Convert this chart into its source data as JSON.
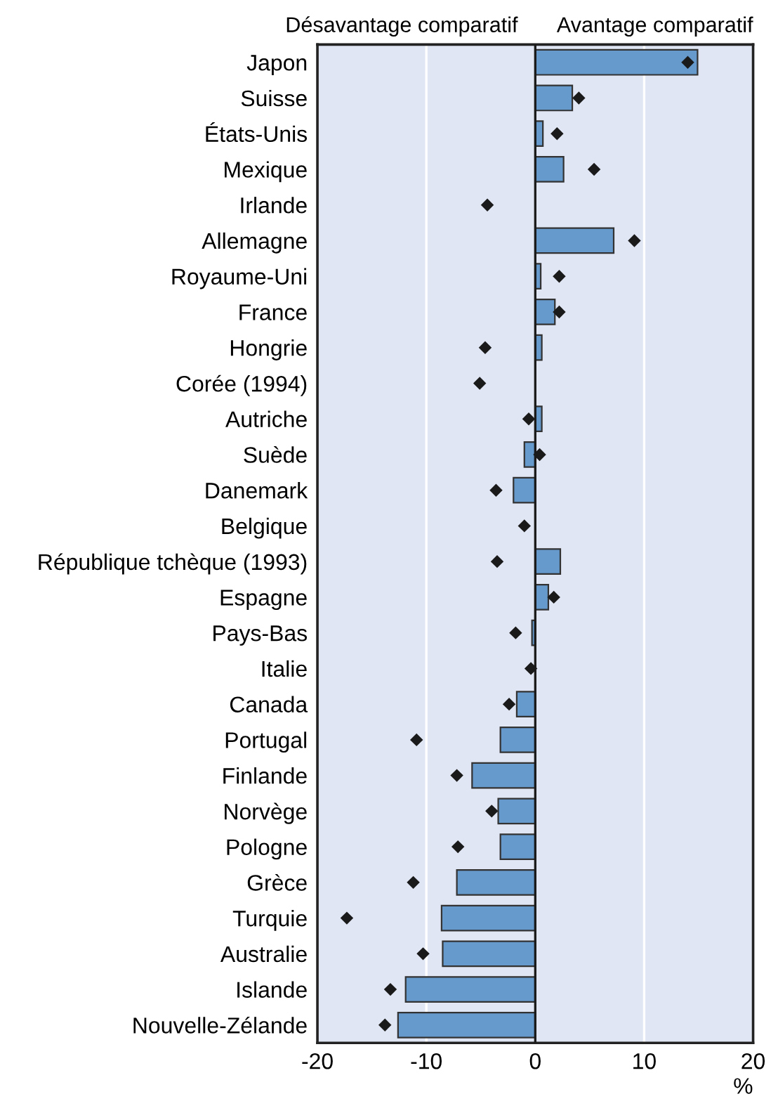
{
  "chart_data": {
    "type": "bar",
    "orientation": "horizontal",
    "xlabel": "%",
    "categories": [
      "Japon",
      "Suisse",
      "États-Unis",
      "Mexique",
      "Irlande",
      "Allemagne",
      "Royaume-Uni",
      "France",
      "Hongrie",
      "Corée (1994)",
      "Autriche",
      "Suède",
      "Danemark",
      "Belgique",
      "République tchèque (1993)",
      "Espagne",
      "Pays-Bas",
      "Italie",
      "Canada",
      "Portugal",
      "Finlande",
      "Norvège",
      "Pologne",
      "Grèce",
      "Turquie",
      "Australie",
      "Islande",
      "Nouvelle-Zélande"
    ],
    "series": [
      {
        "color": "#6699cc",
        "values": [
          14.9,
          3.4,
          0.7,
          2.6,
          null,
          7.2,
          0.5,
          1.8,
          0.6,
          null,
          0.6,
          -1.0,
          -2.0,
          null,
          2.3,
          1.2,
          -0.3,
          null,
          -1.7,
          -3.2,
          -5.8,
          -3.4,
          -3.2,
          -7.2,
          -8.6,
          -8.5,
          -11.9,
          -12.6
        ]
      },
      {
        "type": "scatter",
        "color": "#1a1a1a",
        "marker": "diamond",
        "values": [
          14.0,
          4.0,
          2.0,
          5.4,
          -4.4,
          9.1,
          2.2,
          2.2,
          -4.6,
          -5.1,
          -0.6,
          0.4,
          -3.6,
          -1.0,
          -3.5,
          1.7,
          -1.8,
          -0.4,
          -2.4,
          -10.9,
          -7.2,
          -4.0,
          -7.1,
          -11.2,
          -17.3,
          -10.3,
          -13.3,
          -13.8
        ]
      }
    ],
    "xlim": [
      -20,
      20
    ],
    "xticks": [
      -20,
      -10,
      0,
      10,
      20
    ],
    "grid": "x",
    "ref_lines": [
      {
        "axis": "x",
        "value": 0,
        "color": "#1a1a1a"
      }
    ],
    "annotations": [
      "Désavantage comparatif",
      "Avantage comparatif"
    ]
  }
}
